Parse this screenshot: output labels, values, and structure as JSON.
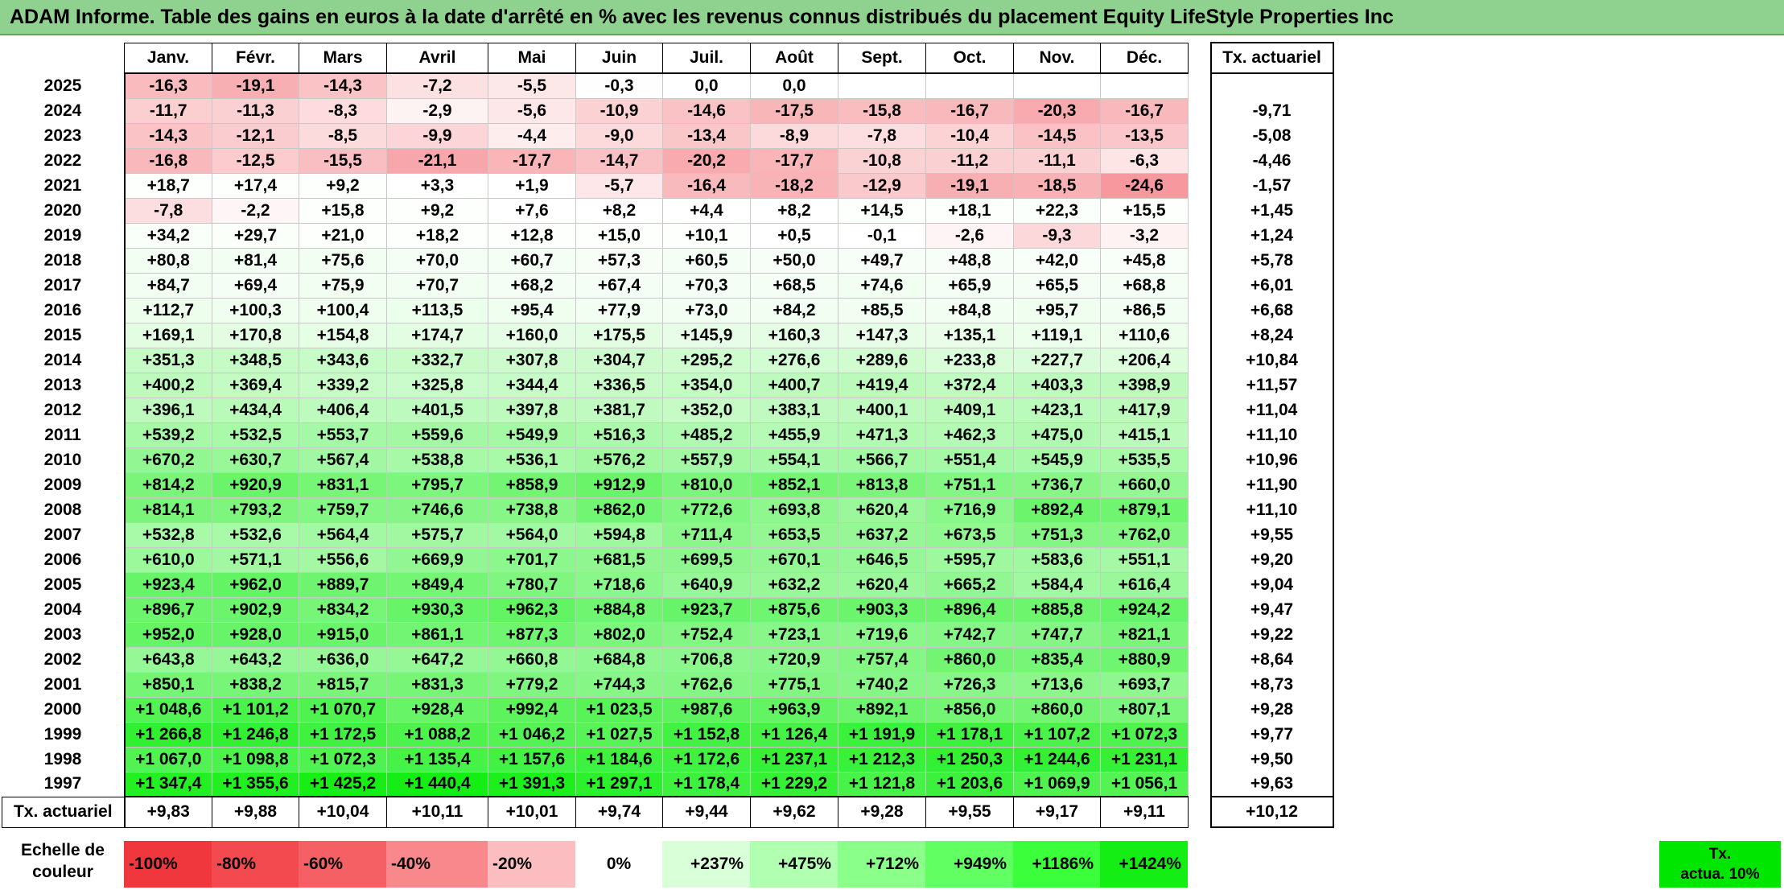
{
  "title": "ADAM Informe. Table des gains en euros à la date d'arrêté en % avec les revenus connus distribués du placement Equity LifeStyle Properties Inc",
  "months": [
    "Janv.",
    "Févr.",
    "Mars",
    "Avril",
    "Mai",
    "Juin",
    "Juil.",
    "Août",
    "Sept.",
    "Oct.",
    "Nov.",
    "Déc."
  ],
  "rate_header": "Tx. actuariel",
  "rows": [
    {
      "year": "2025",
      "values": [
        "-16,3",
        "-19,1",
        "-14,3",
        "-7,2",
        "-5,5",
        "-0,3",
        "0,0",
        "0,0",
        "",
        "",
        "",
        ""
      ],
      "rate": ""
    },
    {
      "year": "2024",
      "values": [
        "-11,7",
        "-11,3",
        "-8,3",
        "-2,9",
        "-5,6",
        "-10,9",
        "-14,6",
        "-17,5",
        "-15,8",
        "-16,7",
        "-20,3",
        "-16,7"
      ],
      "rate": "-9,71"
    },
    {
      "year": "2023",
      "values": [
        "-14,3",
        "-12,1",
        "-8,5",
        "-9,9",
        "-4,4",
        "-9,0",
        "-13,4",
        "-8,9",
        "-7,8",
        "-10,4",
        "-14,5",
        "-13,5"
      ],
      "rate": "-5,08"
    },
    {
      "year": "2022",
      "values": [
        "-16,8",
        "-12,5",
        "-15,5",
        "-21,1",
        "-17,7",
        "-14,7",
        "-20,2",
        "-17,7",
        "-10,8",
        "-11,2",
        "-11,1",
        "-6,3"
      ],
      "rate": "-4,46"
    },
    {
      "year": "2021",
      "values": [
        "+18,7",
        "+17,4",
        "+9,2",
        "+3,3",
        "+1,9",
        "-5,7",
        "-16,4",
        "-18,2",
        "-12,9",
        "-19,1",
        "-18,5",
        "-24,6"
      ],
      "rate": "-1,57"
    },
    {
      "year": "2020",
      "values": [
        "-7,8",
        "-2,2",
        "+15,8",
        "+9,2",
        "+7,6",
        "+8,2",
        "+4,4",
        "+8,2",
        "+14,5",
        "+18,1",
        "+22,3",
        "+15,5"
      ],
      "rate": "+1,45"
    },
    {
      "year": "2019",
      "values": [
        "+34,2",
        "+29,7",
        "+21,0",
        "+18,2",
        "+12,8",
        "+15,0",
        "+10,1",
        "+0,5",
        "-0,1",
        "-2,6",
        "-9,3",
        "-3,2"
      ],
      "rate": "+1,24"
    },
    {
      "year": "2018",
      "values": [
        "+80,8",
        "+81,4",
        "+75,6",
        "+70,0",
        "+60,7",
        "+57,3",
        "+60,5",
        "+50,0",
        "+49,7",
        "+48,8",
        "+42,0",
        "+45,8"
      ],
      "rate": "+5,78"
    },
    {
      "year": "2017",
      "values": [
        "+84,7",
        "+69,4",
        "+75,9",
        "+70,7",
        "+68,2",
        "+67,4",
        "+70,3",
        "+68,5",
        "+74,6",
        "+65,9",
        "+65,5",
        "+68,8"
      ],
      "rate": "+6,01"
    },
    {
      "year": "2016",
      "values": [
        "+112,7",
        "+100,3",
        "+100,4",
        "+113,5",
        "+95,4",
        "+77,9",
        "+73,0",
        "+84,2",
        "+85,5",
        "+84,8",
        "+95,7",
        "+86,5"
      ],
      "rate": "+6,68"
    },
    {
      "year": "2015",
      "values": [
        "+169,1",
        "+170,8",
        "+154,8",
        "+174,7",
        "+160,0",
        "+175,5",
        "+145,9",
        "+160,3",
        "+147,3",
        "+135,1",
        "+119,1",
        "+110,6"
      ],
      "rate": "+8,24"
    },
    {
      "year": "2014",
      "values": [
        "+351,3",
        "+348,5",
        "+343,6",
        "+332,7",
        "+307,8",
        "+304,7",
        "+295,2",
        "+276,6",
        "+289,6",
        "+233,8",
        "+227,7",
        "+206,4"
      ],
      "rate": "+10,84"
    },
    {
      "year": "2013",
      "values": [
        "+400,2",
        "+369,4",
        "+339,2",
        "+325,8",
        "+344,4",
        "+336,5",
        "+354,0",
        "+400,7",
        "+419,4",
        "+372,4",
        "+403,3",
        "+398,9"
      ],
      "rate": "+11,57"
    },
    {
      "year": "2012",
      "values": [
        "+396,1",
        "+434,4",
        "+406,4",
        "+401,5",
        "+397,8",
        "+381,7",
        "+352,0",
        "+383,1",
        "+400,1",
        "+409,1",
        "+423,1",
        "+417,9"
      ],
      "rate": "+11,04"
    },
    {
      "year": "2011",
      "values": [
        "+539,2",
        "+532,5",
        "+553,7",
        "+559,6",
        "+549,9",
        "+516,3",
        "+485,2",
        "+455,9",
        "+471,3",
        "+462,3",
        "+475,0",
        "+415,1"
      ],
      "rate": "+11,10"
    },
    {
      "year": "2010",
      "values": [
        "+670,2",
        "+630,7",
        "+567,4",
        "+538,8",
        "+536,1",
        "+576,2",
        "+557,9",
        "+554,1",
        "+566,7",
        "+551,4",
        "+545,9",
        "+535,5"
      ],
      "rate": "+10,96"
    },
    {
      "year": "2009",
      "values": [
        "+814,2",
        "+920,9",
        "+831,1",
        "+795,7",
        "+858,9",
        "+912,9",
        "+810,0",
        "+852,1",
        "+813,8",
        "+751,1",
        "+736,7",
        "+660,0"
      ],
      "rate": "+11,90"
    },
    {
      "year": "2008",
      "values": [
        "+814,1",
        "+793,2",
        "+759,7",
        "+746,6",
        "+738,8",
        "+862,0",
        "+772,6",
        "+693,8",
        "+620,4",
        "+716,9",
        "+892,4",
        "+879,1"
      ],
      "rate": "+11,10"
    },
    {
      "year": "2007",
      "values": [
        "+532,8",
        "+532,6",
        "+564,4",
        "+575,7",
        "+564,0",
        "+594,8",
        "+711,4",
        "+653,5",
        "+637,2",
        "+673,5",
        "+751,3",
        "+762,0"
      ],
      "rate": "+9,55"
    },
    {
      "year": "2006",
      "values": [
        "+610,0",
        "+571,1",
        "+556,6",
        "+669,9",
        "+701,7",
        "+681,5",
        "+699,5",
        "+670,1",
        "+646,5",
        "+595,7",
        "+583,6",
        "+551,1"
      ],
      "rate": "+9,20"
    },
    {
      "year": "2005",
      "values": [
        "+923,4",
        "+962,0",
        "+889,7",
        "+849,4",
        "+780,7",
        "+718,6",
        "+640,9",
        "+632,2",
        "+620,4",
        "+665,2",
        "+584,4",
        "+616,4"
      ],
      "rate": "+9,04"
    },
    {
      "year": "2004",
      "values": [
        "+896,7",
        "+902,9",
        "+834,2",
        "+930,3",
        "+962,3",
        "+884,8",
        "+923,7",
        "+875,6",
        "+903,3",
        "+896,4",
        "+885,8",
        "+924,2"
      ],
      "rate": "+9,47"
    },
    {
      "year": "2003",
      "values": [
        "+952,0",
        "+928,0",
        "+915,0",
        "+861,1",
        "+877,3",
        "+802,0",
        "+752,4",
        "+723,1",
        "+719,6",
        "+742,7",
        "+747,7",
        "+821,1"
      ],
      "rate": "+9,22"
    },
    {
      "year": "2002",
      "values": [
        "+643,8",
        "+643,2",
        "+636,0",
        "+647,2",
        "+660,8",
        "+684,8",
        "+706,8",
        "+720,9",
        "+757,4",
        "+860,0",
        "+835,4",
        "+880,9"
      ],
      "rate": "+8,64"
    },
    {
      "year": "2001",
      "values": [
        "+850,1",
        "+838,2",
        "+815,7",
        "+831,3",
        "+779,2",
        "+744,3",
        "+762,6",
        "+775,1",
        "+740,2",
        "+726,3",
        "+713,6",
        "+693,7"
      ],
      "rate": "+8,73"
    },
    {
      "year": "2000",
      "values": [
        "+1 048,6",
        "+1 101,2",
        "+1 070,7",
        "+928,4",
        "+992,4",
        "+1 023,5",
        "+987,6",
        "+963,9",
        "+892,1",
        "+856,0",
        "+860,0",
        "+807,1"
      ],
      "rate": "+9,28"
    },
    {
      "year": "1999",
      "values": [
        "+1 266,8",
        "+1 246,8",
        "+1 172,5",
        "+1 088,2",
        "+1 046,2",
        "+1 027,5",
        "+1 152,8",
        "+1 126,4",
        "+1 191,9",
        "+1 178,1",
        "+1 107,2",
        "+1 072,3"
      ],
      "rate": "+9,77"
    },
    {
      "year": "1998",
      "values": [
        "+1 067,0",
        "+1 098,8",
        "+1 072,3",
        "+1 135,4",
        "+1 157,6",
        "+1 184,6",
        "+1 172,6",
        "+1 237,1",
        "+1 212,3",
        "+1 250,3",
        "+1 244,6",
        "+1 231,1"
      ],
      "rate": "+9,50"
    },
    {
      "year": "1997",
      "values": [
        "+1 347,4",
        "+1 355,6",
        "+1 425,2",
        "+1 440,4",
        "+1 391,3",
        "+1 297,1",
        "+1 178,4",
        "+1 229,2",
        "+1 121,8",
        "+1 203,6",
        "+1 069,9",
        "+1 056,1"
      ],
      "rate": "+9,63"
    }
  ],
  "totals": {
    "label": "Tx. actuariel",
    "values": [
      "+9,83",
      "+9,88",
      "+10,04",
      "+10,11",
      "+10,01",
      "+9,74",
      "+9,44",
      "+9,62",
      "+9,28",
      "+9,55",
      "+9,17",
      "+9,11"
    ],
    "rate": "+10,12"
  },
  "legend": {
    "label_line1": "Echelle de",
    "label_line2": "couleur",
    "items": [
      {
        "text": "-100%",
        "color": "#f0373d",
        "kind": "neg"
      },
      {
        "text": "-80%",
        "color": "#f24a4f",
        "kind": "neg"
      },
      {
        "text": "-60%",
        "color": "#f46064",
        "kind": "neg"
      },
      {
        "text": "-40%",
        "color": "#f8888c",
        "kind": "neg"
      },
      {
        "text": "-20%",
        "color": "#fbbdc0",
        "kind": "neg"
      },
      {
        "text": "0%",
        "color": "#ffffff",
        "kind": "zero"
      },
      {
        "text": "+237%",
        "color": "#d8ffd8",
        "kind": "pos"
      },
      {
        "text": "+475%",
        "color": "#b1ffb1",
        "kind": "pos"
      },
      {
        "text": "+712%",
        "color": "#8aff8a",
        "kind": "pos"
      },
      {
        "text": "+949%",
        "color": "#62ff62",
        "kind": "pos"
      },
      {
        "text": "+1186%",
        "color": "#3aff3a",
        "kind": "pos"
      },
      {
        "text": "+1424%",
        "color": "#14ee14",
        "kind": "pos"
      }
    ],
    "rate_line1": "Tx.",
    "rate_line2": "actua. 10%",
    "rate_color": "#00e600"
  }
}
